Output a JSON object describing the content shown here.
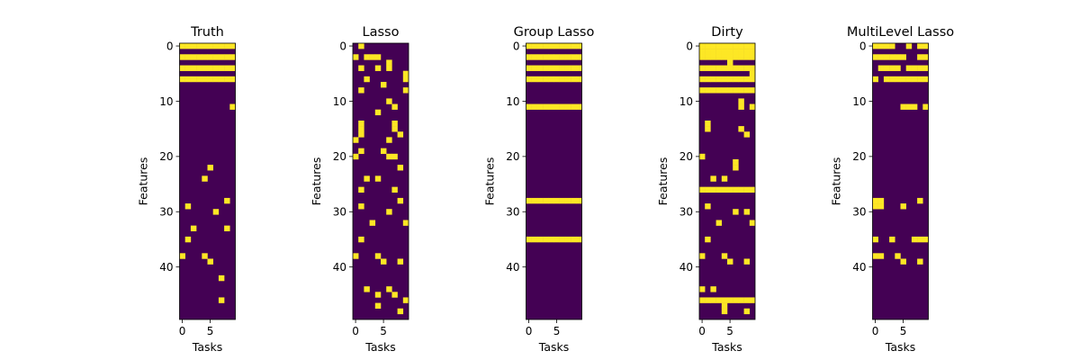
{
  "chart_data": [
    {
      "type": "heatmap",
      "title": "Truth",
      "xlabel": "Tasks",
      "ylabel": "Features",
      "x_ticks": [
        0,
        5
      ],
      "y_ticks": [
        0,
        10,
        20,
        30,
        40
      ],
      "xlim": [
        -0.5,
        9.5
      ],
      "ylim": [
        49.5,
        -0.5
      ],
      "n_rows": 50,
      "n_cols": 10,
      "colors": {
        "off": "#440154",
        "on": "#fde725"
      },
      "active_cells": [
        [
          0,
          0
        ],
        [
          0,
          1
        ],
        [
          0,
          2
        ],
        [
          0,
          3
        ],
        [
          0,
          4
        ],
        [
          0,
          5
        ],
        [
          0,
          6
        ],
        [
          0,
          7
        ],
        [
          0,
          8
        ],
        [
          0,
          9
        ],
        [
          2,
          0
        ],
        [
          2,
          1
        ],
        [
          2,
          2
        ],
        [
          2,
          3
        ],
        [
          2,
          4
        ],
        [
          2,
          5
        ],
        [
          2,
          6
        ],
        [
          2,
          7
        ],
        [
          2,
          8
        ],
        [
          2,
          9
        ],
        [
          4,
          0
        ],
        [
          4,
          1
        ],
        [
          4,
          2
        ],
        [
          4,
          3
        ],
        [
          4,
          4
        ],
        [
          4,
          5
        ],
        [
          4,
          6
        ],
        [
          4,
          7
        ],
        [
          4,
          8
        ],
        [
          4,
          9
        ],
        [
          6,
          0
        ],
        [
          6,
          1
        ],
        [
          6,
          2
        ],
        [
          6,
          3
        ],
        [
          6,
          4
        ],
        [
          6,
          5
        ],
        [
          6,
          6
        ],
        [
          6,
          7
        ],
        [
          6,
          8
        ],
        [
          6,
          9
        ],
        [
          11,
          9
        ],
        [
          22,
          5
        ],
        [
          24,
          4
        ],
        [
          28,
          8
        ],
        [
          29,
          1
        ],
        [
          30,
          6
        ],
        [
          33,
          2
        ],
        [
          33,
          8
        ],
        [
          35,
          1
        ],
        [
          38,
          0
        ],
        [
          38,
          4
        ],
        [
          39,
          5
        ],
        [
          42,
          7
        ],
        [
          46,
          7
        ]
      ]
    },
    {
      "type": "heatmap",
      "title": "Lasso",
      "xlabel": "Tasks",
      "ylabel": "Features",
      "x_ticks": [
        0,
        5
      ],
      "y_ticks": [
        0,
        10,
        20,
        30,
        40
      ],
      "xlim": [
        -0.5,
        9.5
      ],
      "ylim": [
        49.5,
        -0.5
      ],
      "n_rows": 50,
      "n_cols": 10,
      "colors": {
        "off": "#440154",
        "on": "#fde725"
      },
      "active_cells": [
        [
          0,
          1
        ],
        [
          2,
          0
        ],
        [
          2,
          2
        ],
        [
          2,
          3
        ],
        [
          2,
          4
        ],
        [
          3,
          6
        ],
        [
          4,
          1
        ],
        [
          4,
          4
        ],
        [
          4,
          6
        ],
        [
          5,
          9
        ],
        [
          6,
          9
        ],
        [
          6,
          2
        ],
        [
          7,
          5
        ],
        [
          8,
          1
        ],
        [
          8,
          9
        ],
        [
          10,
          6
        ],
        [
          11,
          7
        ],
        [
          12,
          4
        ],
        [
          14,
          1
        ],
        [
          14,
          7
        ],
        [
          15,
          1
        ],
        [
          15,
          7
        ],
        [
          16,
          1
        ],
        [
          16,
          8
        ],
        [
          17,
          0
        ],
        [
          17,
          6
        ],
        [
          19,
          1
        ],
        [
          19,
          5
        ],
        [
          20,
          0
        ],
        [
          20,
          6
        ],
        [
          20,
          7
        ],
        [
          22,
          8
        ],
        [
          24,
          2
        ],
        [
          24,
          4
        ],
        [
          26,
          1
        ],
        [
          26,
          7
        ],
        [
          28,
          8
        ],
        [
          29,
          1
        ],
        [
          30,
          6
        ],
        [
          32,
          3
        ],
        [
          32,
          9
        ],
        [
          35,
          1
        ],
        [
          38,
          0
        ],
        [
          38,
          4
        ],
        [
          39,
          5
        ],
        [
          39,
          8
        ],
        [
          44,
          2
        ],
        [
          44,
          6
        ],
        [
          45,
          4
        ],
        [
          45,
          7
        ],
        [
          46,
          9
        ],
        [
          47,
          4
        ],
        [
          48,
          8
        ]
      ]
    },
    {
      "type": "heatmap",
      "title": "Group Lasso",
      "xlabel": "Tasks",
      "ylabel": "Features",
      "x_ticks": [
        0,
        5
      ],
      "y_ticks": [
        0,
        10,
        20,
        30,
        40
      ],
      "xlim": [
        -0.5,
        9.5
      ],
      "ylim": [
        49.5,
        -0.5
      ],
      "n_rows": 50,
      "n_cols": 10,
      "colors": {
        "off": "#440154",
        "on": "#fde725"
      },
      "active_cells": [
        [
          0,
          0
        ],
        [
          0,
          1
        ],
        [
          0,
          2
        ],
        [
          0,
          3
        ],
        [
          0,
          4
        ],
        [
          0,
          5
        ],
        [
          0,
          6
        ],
        [
          0,
          7
        ],
        [
          0,
          8
        ],
        [
          0,
          9
        ],
        [
          2,
          0
        ],
        [
          2,
          1
        ],
        [
          2,
          2
        ],
        [
          2,
          3
        ],
        [
          2,
          4
        ],
        [
          2,
          5
        ],
        [
          2,
          6
        ],
        [
          2,
          7
        ],
        [
          2,
          8
        ],
        [
          2,
          9
        ],
        [
          4,
          0
        ],
        [
          4,
          1
        ],
        [
          4,
          2
        ],
        [
          4,
          3
        ],
        [
          4,
          4
        ],
        [
          4,
          5
        ],
        [
          4,
          6
        ],
        [
          4,
          7
        ],
        [
          4,
          8
        ],
        [
          4,
          9
        ],
        [
          6,
          0
        ],
        [
          6,
          1
        ],
        [
          6,
          2
        ],
        [
          6,
          3
        ],
        [
          6,
          4
        ],
        [
          6,
          5
        ],
        [
          6,
          6
        ],
        [
          6,
          7
        ],
        [
          6,
          8
        ],
        [
          6,
          9
        ],
        [
          11,
          0
        ],
        [
          11,
          1
        ],
        [
          11,
          2
        ],
        [
          11,
          3
        ],
        [
          11,
          4
        ],
        [
          11,
          5
        ],
        [
          11,
          6
        ],
        [
          11,
          7
        ],
        [
          11,
          8
        ],
        [
          11,
          9
        ],
        [
          28,
          0
        ],
        [
          28,
          1
        ],
        [
          28,
          2
        ],
        [
          28,
          3
        ],
        [
          28,
          4
        ],
        [
          28,
          5
        ],
        [
          28,
          6
        ],
        [
          28,
          7
        ],
        [
          28,
          8
        ],
        [
          28,
          9
        ],
        [
          35,
          0
        ],
        [
          35,
          1
        ],
        [
          35,
          2
        ],
        [
          35,
          3
        ],
        [
          35,
          4
        ],
        [
          35,
          5
        ],
        [
          35,
          6
        ],
        [
          35,
          7
        ],
        [
          35,
          8
        ],
        [
          35,
          9
        ]
      ]
    },
    {
      "type": "heatmap",
      "title": "Dirty",
      "xlabel": "Tasks",
      "ylabel": "Features",
      "x_ticks": [
        0,
        5
      ],
      "y_ticks": [
        0,
        10,
        20,
        30,
        40
      ],
      "xlim": [
        -0.5,
        9.5
      ],
      "ylim": [
        49.5,
        -0.5
      ],
      "n_rows": 50,
      "n_cols": 10,
      "colors": {
        "off": "#440154",
        "on": "#fde725"
      },
      "active_cells": [
        [
          0,
          0
        ],
        [
          0,
          1
        ],
        [
          0,
          2
        ],
        [
          0,
          3
        ],
        [
          0,
          4
        ],
        [
          0,
          5
        ],
        [
          0,
          6
        ],
        [
          0,
          7
        ],
        [
          0,
          8
        ],
        [
          0,
          9
        ],
        [
          1,
          0
        ],
        [
          1,
          1
        ],
        [
          1,
          2
        ],
        [
          1,
          3
        ],
        [
          1,
          4
        ],
        [
          1,
          5
        ],
        [
          1,
          6
        ],
        [
          1,
          7
        ],
        [
          1,
          8
        ],
        [
          1,
          9
        ],
        [
          2,
          0
        ],
        [
          2,
          1
        ],
        [
          2,
          2
        ],
        [
          2,
          3
        ],
        [
          2,
          4
        ],
        [
          2,
          5
        ],
        [
          2,
          6
        ],
        [
          2,
          7
        ],
        [
          2,
          8
        ],
        [
          2,
          9
        ],
        [
          3,
          5
        ],
        [
          4,
          0
        ],
        [
          4,
          1
        ],
        [
          4,
          2
        ],
        [
          4,
          3
        ],
        [
          4,
          4
        ],
        [
          4,
          5
        ],
        [
          4,
          6
        ],
        [
          4,
          7
        ],
        [
          4,
          8
        ],
        [
          4,
          9
        ],
        [
          5,
          9
        ],
        [
          6,
          0
        ],
        [
          6,
          1
        ],
        [
          6,
          2
        ],
        [
          6,
          3
        ],
        [
          6,
          4
        ],
        [
          6,
          5
        ],
        [
          6,
          6
        ],
        [
          6,
          7
        ],
        [
          6,
          8
        ],
        [
          6,
          9
        ],
        [
          8,
          0
        ],
        [
          8,
          1
        ],
        [
          8,
          2
        ],
        [
          8,
          3
        ],
        [
          8,
          4
        ],
        [
          8,
          5
        ],
        [
          8,
          6
        ],
        [
          8,
          7
        ],
        [
          8,
          8
        ],
        [
          8,
          9
        ],
        [
          10,
          7
        ],
        [
          11,
          7
        ],
        [
          11,
          9
        ],
        [
          14,
          1
        ],
        [
          15,
          1
        ],
        [
          15,
          7
        ],
        [
          16,
          8
        ],
        [
          20,
          0
        ],
        [
          21,
          6
        ],
        [
          22,
          6
        ],
        [
          24,
          2
        ],
        [
          24,
          4
        ],
        [
          26,
          0
        ],
        [
          26,
          1
        ],
        [
          26,
          2
        ],
        [
          26,
          3
        ],
        [
          26,
          4
        ],
        [
          26,
          5
        ],
        [
          26,
          6
        ],
        [
          26,
          7
        ],
        [
          26,
          8
        ],
        [
          26,
          9
        ],
        [
          29,
          1
        ],
        [
          30,
          6
        ],
        [
          30,
          8
        ],
        [
          32,
          3
        ],
        [
          32,
          9
        ],
        [
          35,
          1
        ],
        [
          38,
          0
        ],
        [
          38,
          4
        ],
        [
          39,
          5
        ],
        [
          39,
          8
        ],
        [
          44,
          0
        ],
        [
          44,
          2
        ],
        [
          46,
          0
        ],
        [
          46,
          1
        ],
        [
          46,
          2
        ],
        [
          46,
          3
        ],
        [
          46,
          4
        ],
        [
          46,
          5
        ],
        [
          46,
          6
        ],
        [
          46,
          7
        ],
        [
          46,
          8
        ],
        [
          46,
          9
        ],
        [
          47,
          4
        ],
        [
          48,
          4
        ],
        [
          48,
          8
        ]
      ]
    },
    {
      "type": "heatmap",
      "title": "MultiLevel Lasso",
      "xlabel": "Tasks",
      "ylabel": "Features",
      "x_ticks": [
        0,
        5
      ],
      "y_ticks": [
        0,
        10,
        20,
        30,
        40
      ],
      "xlim": [
        -0.5,
        9.5
      ],
      "ylim": [
        49.5,
        -0.5
      ],
      "n_rows": 50,
      "n_cols": 10,
      "colors": {
        "off": "#440154",
        "on": "#fde725"
      },
      "active_cells": [
        [
          0,
          0
        ],
        [
          0,
          1
        ],
        [
          0,
          2
        ],
        [
          0,
          3
        ],
        [
          0,
          6
        ],
        [
          0,
          8
        ],
        [
          0,
          9
        ],
        [
          2,
          0
        ],
        [
          2,
          1
        ],
        [
          2,
          2
        ],
        [
          2,
          3
        ],
        [
          2,
          4
        ],
        [
          2,
          5
        ],
        [
          2,
          8
        ],
        [
          2,
          9
        ],
        [
          4,
          1
        ],
        [
          4,
          2
        ],
        [
          4,
          3
        ],
        [
          4,
          4
        ],
        [
          4,
          6
        ],
        [
          4,
          7
        ],
        [
          4,
          8
        ],
        [
          4,
          9
        ],
        [
          6,
          0
        ],
        [
          6,
          2
        ],
        [
          6,
          3
        ],
        [
          6,
          4
        ],
        [
          6,
          5
        ],
        [
          6,
          6
        ],
        [
          6,
          7
        ],
        [
          6,
          8
        ],
        [
          6,
          9
        ],
        [
          11,
          5
        ],
        [
          11,
          6
        ],
        [
          11,
          7
        ],
        [
          11,
          9
        ],
        [
          28,
          0
        ],
        [
          28,
          1
        ],
        [
          28,
          8
        ],
        [
          29,
          0
        ],
        [
          29,
          1
        ],
        [
          29,
          5
        ],
        [
          35,
          0
        ],
        [
          35,
          3
        ],
        [
          35,
          7
        ],
        [
          35,
          8
        ],
        [
          35,
          9
        ],
        [
          38,
          0
        ],
        [
          38,
          1
        ],
        [
          38,
          4
        ],
        [
          39,
          5
        ],
        [
          39,
          8
        ]
      ]
    }
  ]
}
